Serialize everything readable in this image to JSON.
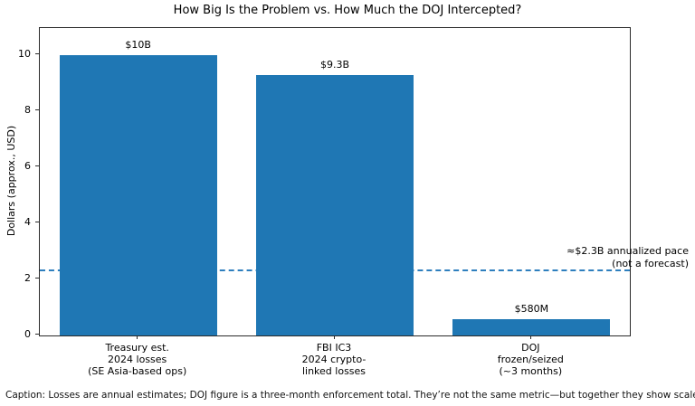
{
  "chart_data": {
    "type": "bar",
    "title": "How Big Is the Problem vs. How Much the DOJ Intercepted?",
    "ylabel": "Dollars (approx., USD)",
    "ylim": [
      0,
      10.97
    ],
    "yticks": [
      0,
      2,
      4,
      6,
      8,
      10
    ],
    "grid": false,
    "categories": [
      "Treasury est.\n2024 losses\n(SE Asia-based ops)",
      "FBI IC3\n2024 crypto-\nlinked losses",
      "DOJ\nfrozen/seized\n(~3 months)"
    ],
    "values": [
      10.0,
      9.3,
      0.58
    ],
    "bar_labels": [
      "$10B",
      "$9.3B",
      "$580M"
    ],
    "bar_color": "#1f77b4",
    "reference_line": {
      "value": 2.3,
      "style": "dashed",
      "color": "#2e7fbe",
      "annotation": [
        "≈$2.3B annualized pace",
        "(not a forecast)"
      ]
    },
    "caption": "Caption: Losses are annual estimates; DOJ figure is a three-month enforcement total. They’re not the same metric—but together they show scale vs interception."
  }
}
